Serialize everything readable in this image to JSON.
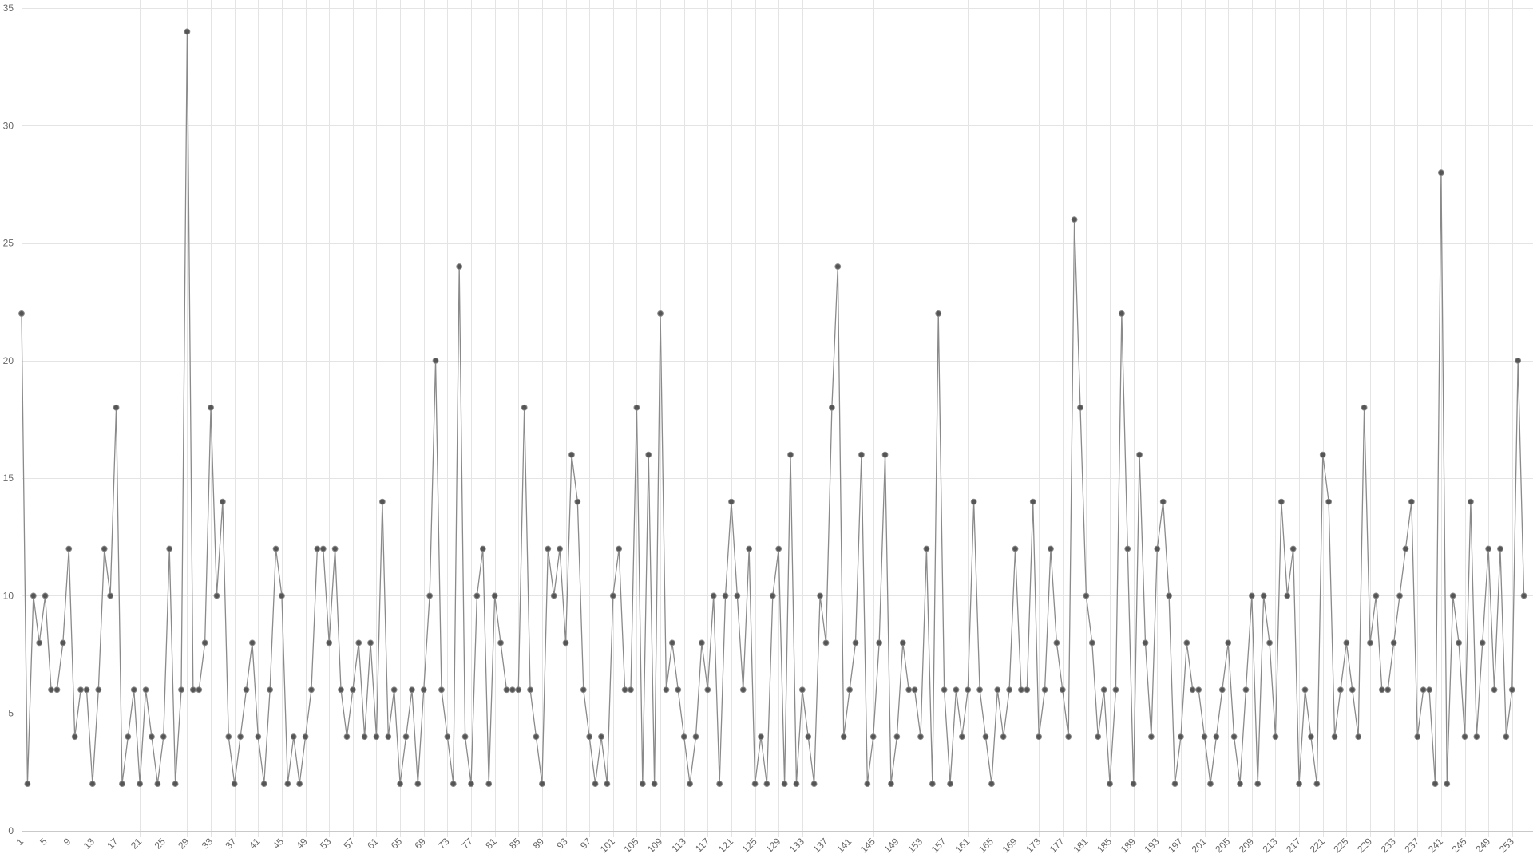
{
  "colors": {
    "line": "#8a8a8a",
    "point": "#555555",
    "grid": "#e4e4e4",
    "label": "#666666",
    "background": "#ffffff"
  },
  "chart_data": {
    "type": "line",
    "title": "",
    "xlabel": "",
    "ylabel": "",
    "grid": true,
    "legend": "none",
    "ylim": [
      0,
      35
    ],
    "yticks": [
      0,
      5,
      10,
      15,
      20,
      25,
      30,
      35
    ],
    "xrange": [
      1,
      256
    ],
    "xtick_step": 4,
    "x_start": 1,
    "series": [
      {
        "values": [
          22,
          2,
          10,
          8,
          10,
          6,
          6,
          8,
          12,
          4,
          6,
          6,
          2,
          6,
          12,
          10,
          18,
          2,
          4,
          6,
          2,
          6,
          4,
          2,
          4,
          12,
          2,
          6,
          34,
          6,
          6,
          8,
          18,
          10,
          14,
          4,
          2,
          4,
          6,
          8,
          4,
          2,
          6,
          12,
          10,
          2,
          4,
          2,
          4,
          6,
          12,
          12,
          8,
          12,
          6,
          4,
          6,
          8,
          4,
          8,
          4,
          14,
          4,
          6,
          2,
          4,
          6,
          2,
          6,
          10,
          20,
          6,
          4,
          2,
          24,
          4,
          2,
          10,
          12,
          2,
          10,
          8,
          6,
          6,
          6,
          18,
          6,
          4,
          2,
          12,
          10,
          12,
          8,
          16,
          14,
          6,
          4,
          2,
          4,
          2,
          10,
          12,
          6,
          6,
          18,
          2,
          16,
          2,
          22,
          6,
          8,
          6,
          4,
          2,
          4,
          8,
          6,
          10,
          2,
          10,
          14,
          10,
          6,
          12,
          2,
          4,
          2,
          10,
          12,
          2,
          16,
          2,
          6,
          4,
          2,
          10,
          8,
          18,
          24,
          4,
          6,
          8,
          16,
          2,
          4,
          8,
          16,
          2,
          4,
          8,
          6,
          6,
          4,
          12,
          2,
          22,
          6,
          2,
          6,
          4,
          6,
          14,
          6,
          4,
          2,
          6,
          4,
          6,
          12,
          6,
          6,
          14,
          4,
          6,
          12,
          8,
          6,
          4,
          26,
          18,
          10,
          8,
          4,
          6,
          2,
          6,
          22,
          12,
          2,
          16,
          8,
          4,
          12,
          14,
          10,
          2,
          4,
          8,
          6,
          6,
          4,
          2,
          4,
          6,
          8,
          4,
          2,
          6,
          10,
          2,
          10,
          8,
          4,
          14,
          10,
          12,
          2,
          6,
          4,
          2,
          16,
          14,
          4,
          6,
          8,
          6,
          4,
          18,
          8,
          10,
          6,
          6,
          8,
          10,
          12,
          14,
          4,
          6,
          6,
          2,
          28,
          2,
          10,
          8,
          4,
          14,
          4,
          8,
          12,
          6,
          12,
          4,
          6,
          20,
          10
        ]
      }
    ]
  }
}
